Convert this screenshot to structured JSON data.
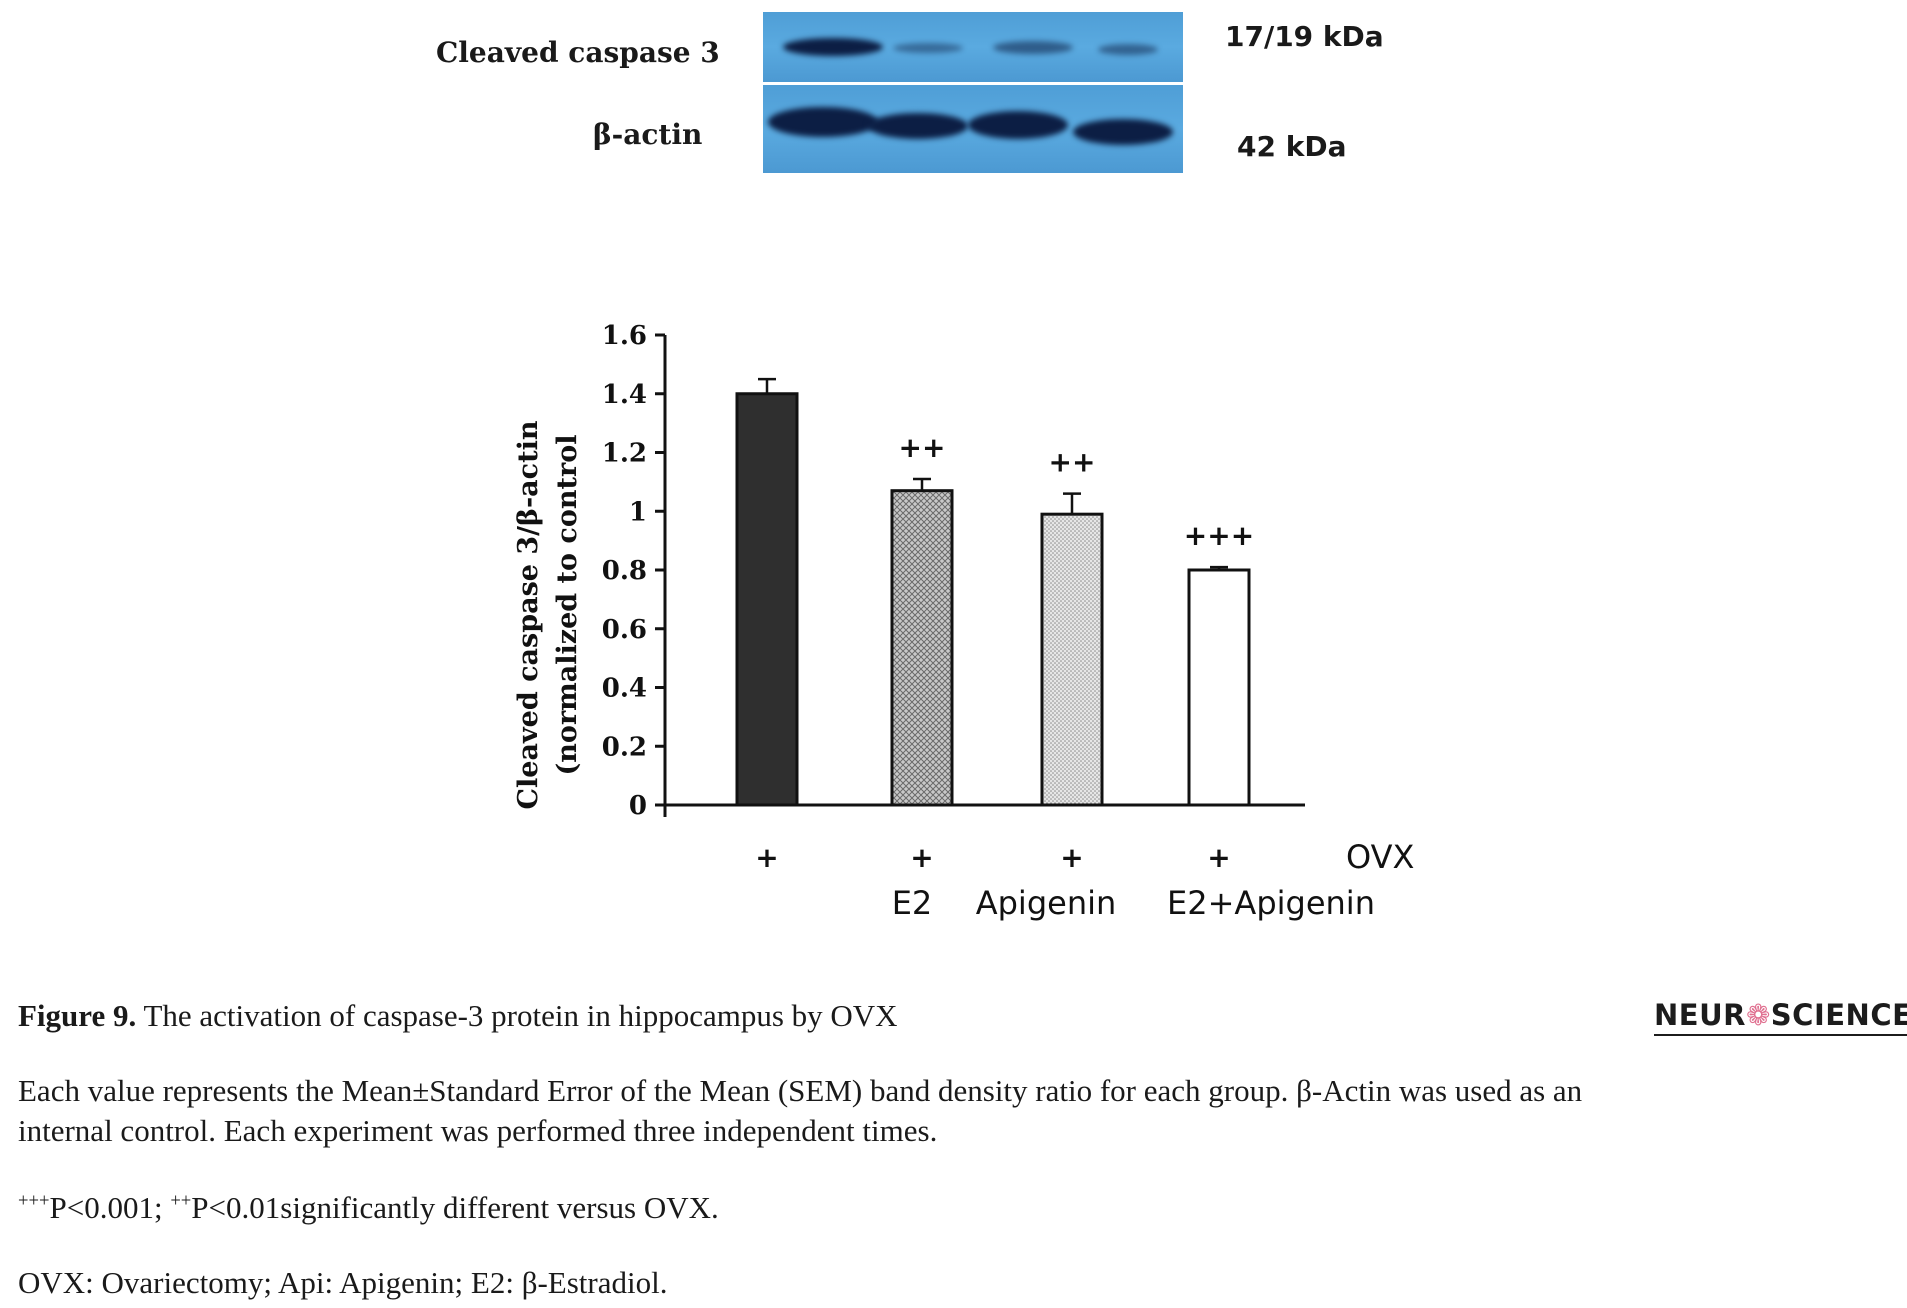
{
  "blot": {
    "rows": [
      {
        "label": "Cleaved caspase 3",
        "kda": "17/19 kDa"
      },
      {
        "label": "β-actin",
        "kda": "42 kDa"
      }
    ]
  },
  "chart_data": {
    "type": "bar",
    "categories": [
      "OVX",
      "OVX+E2",
      "OVX+Apigenin",
      "OVX+E2+Apigenin"
    ],
    "values": [
      1.4,
      1.07,
      0.99,
      0.8
    ],
    "errors": [
      0.05,
      0.04,
      0.07,
      0.01
    ],
    "significance": [
      "",
      "++",
      "++",
      "+++"
    ],
    "bar_fill": [
      "#2f2f2f",
      "#bdbdbd",
      "#dcdcdc",
      "#ffffff"
    ],
    "ylabel_line1": "Cleaved caspase 3/β-actin",
    "ylabel_line2": "(normalized to control",
    "ylim": [
      0,
      1.6
    ],
    "yticks": [
      "0",
      "0.2",
      "0.4",
      "0.6",
      "0.8",
      "1",
      "1.2",
      "1.4",
      "1.6"
    ],
    "group_row_marks": [
      "+",
      "+",
      "+",
      "+"
    ],
    "group_row_label": "OVX",
    "treatment_labels": [
      "",
      "E2",
      "Apigenin",
      "E2+Apigenin"
    ],
    "legend": "none",
    "grid": false
  },
  "caption": {
    "figure_label": "Figure 9.",
    "title": " The activation of caspase-3 protein in hippocampus by OVX",
    "line1": "Each value represents the Mean±Standard Error of the Mean (SEM) band density ratio for each group. β-Actin was used as an",
    "line2": "internal control. Each experiment was performed three independent times.",
    "sig_marker1": "+++",
    "sig_text1": "P<0.001;  ",
    "sig_marker2": "++",
    "sig_text2": "P<0.01significantly different versus OVX.",
    "abbrev": "OVX: Ovariectomy; Api: Apigenin; E2: β-Estradiol."
  },
  "logo": {
    "left": "NEUR",
    "mark": "❁",
    "right": "SCIENCE"
  }
}
